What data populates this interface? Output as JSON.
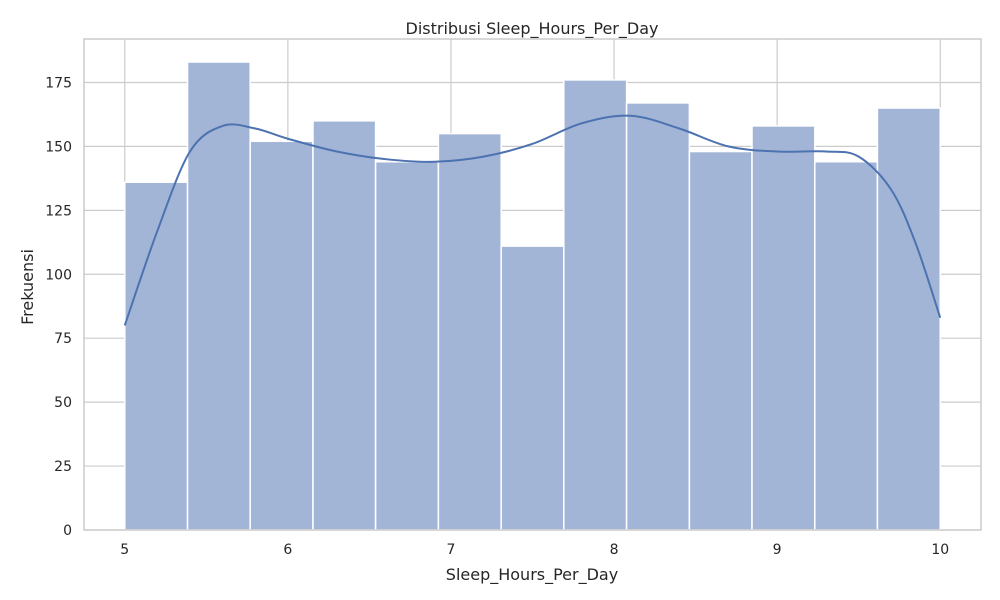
{
  "chart_data": {
    "type": "bar",
    "title": "Distribusi Sleep_Hours_Per_Day",
    "xlabel": "Sleep_Hours_Per_Day",
    "ylabel": "Frekuensi",
    "xlim": [
      4.75,
      10.25
    ],
    "ylim": [
      0,
      192
    ],
    "xticks": [
      5,
      6,
      7,
      8,
      9,
      10
    ],
    "yticks": [
      0,
      25,
      50,
      75,
      100,
      125,
      150,
      175
    ],
    "grid": true,
    "bar_color": "#a3b5d7",
    "line_color": "#4c72b0",
    "bins": [
      {
        "x0": 5.0,
        "x1": 5.385,
        "count": 136
      },
      {
        "x0": 5.385,
        "x1": 5.769,
        "count": 183
      },
      {
        "x0": 5.769,
        "x1": 6.154,
        "count": 152
      },
      {
        "x0": 6.154,
        "x1": 6.538,
        "count": 160
      },
      {
        "x0": 6.538,
        "x1": 6.923,
        "count": 144
      },
      {
        "x0": 6.923,
        "x1": 7.308,
        "count": 155
      },
      {
        "x0": 7.308,
        "x1": 7.692,
        "count": 111
      },
      {
        "x0": 7.692,
        "x1": 8.077,
        "count": 176
      },
      {
        "x0": 8.077,
        "x1": 8.462,
        "count": 167
      },
      {
        "x0": 8.462,
        "x1": 8.846,
        "count": 148
      },
      {
        "x0": 8.846,
        "x1": 9.231,
        "count": 158
      },
      {
        "x0": 9.231,
        "x1": 9.615,
        "count": 144
      },
      {
        "x0": 9.615,
        "x1": 10.0,
        "count": 165
      }
    ],
    "kde": {
      "x": [
        5.0,
        5.2,
        5.4,
        5.6,
        5.8,
        6.0,
        6.3,
        6.6,
        6.9,
        7.2,
        7.5,
        7.8,
        8.1,
        8.4,
        8.7,
        9.0,
        9.3,
        9.5,
        9.7,
        9.85,
        10.0
      ],
      "y": [
        80,
        117,
        148,
        158,
        157,
        153,
        148,
        145,
        144,
        146,
        151,
        159,
        162,
        157,
        150,
        148,
        148,
        146,
        133,
        112,
        83
      ]
    }
  }
}
